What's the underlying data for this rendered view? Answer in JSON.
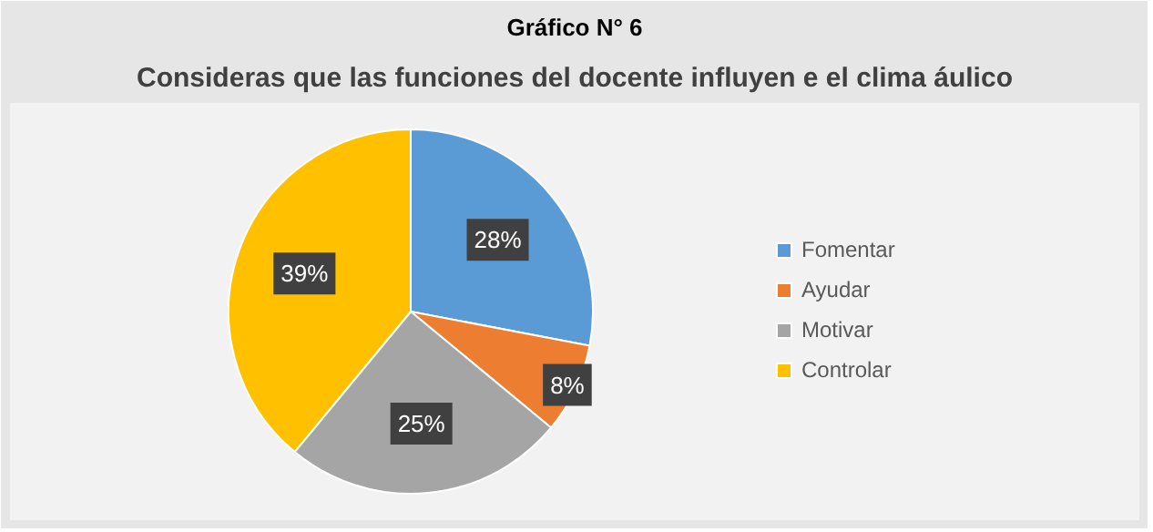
{
  "chart_data": {
    "type": "pie",
    "title": "Consideras que las funciones del docente influyen e el clima áulico",
    "annotations": [
      "Gráfico N° 6"
    ],
    "categories": [
      "Fomentar",
      "Ayudar",
      "Motivar",
      "Controlar"
    ],
    "values": [
      28,
      8,
      25,
      39
    ],
    "colors": [
      "#5b9bd5",
      "#ed7d31",
      "#a5a5a5",
      "#ffc000"
    ],
    "value_labels": [
      "28%",
      "8%",
      "25%",
      "39%"
    ],
    "legend": "right"
  }
}
